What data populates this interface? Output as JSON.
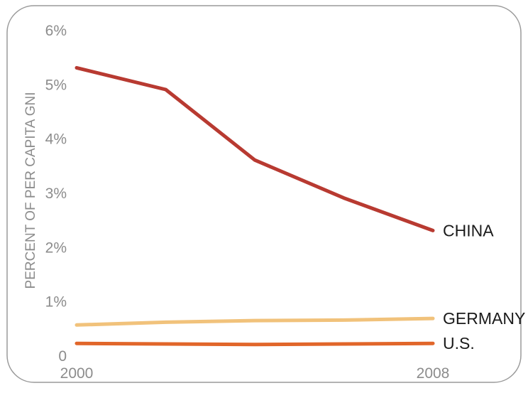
{
  "chart_data": {
    "type": "line",
    "ylabel": "PERCENT OF PER CAPITA GNI",
    "x": [
      2000,
      2002,
      2004,
      2006,
      2008
    ],
    "xticks": [
      "2000",
      "2008"
    ],
    "ylim": [
      0,
      6
    ],
    "yticks": [
      "0",
      "1%",
      "2%",
      "3%",
      "4%",
      "5%",
      "6%"
    ],
    "grid": false,
    "series": [
      {
        "name": "CHINA",
        "color": "#b83a31",
        "values": [
          5.3,
          4.9,
          3.6,
          2.9,
          2.3
        ]
      },
      {
        "name": "GERMANY",
        "color": "#f1c27b",
        "values": [
          0.56,
          0.61,
          0.64,
          0.65,
          0.68
        ]
      },
      {
        "name": "U.S.",
        "color": "#e1662a",
        "values": [
          0.22,
          0.21,
          0.2,
          0.21,
          0.22
        ]
      }
    ]
  }
}
